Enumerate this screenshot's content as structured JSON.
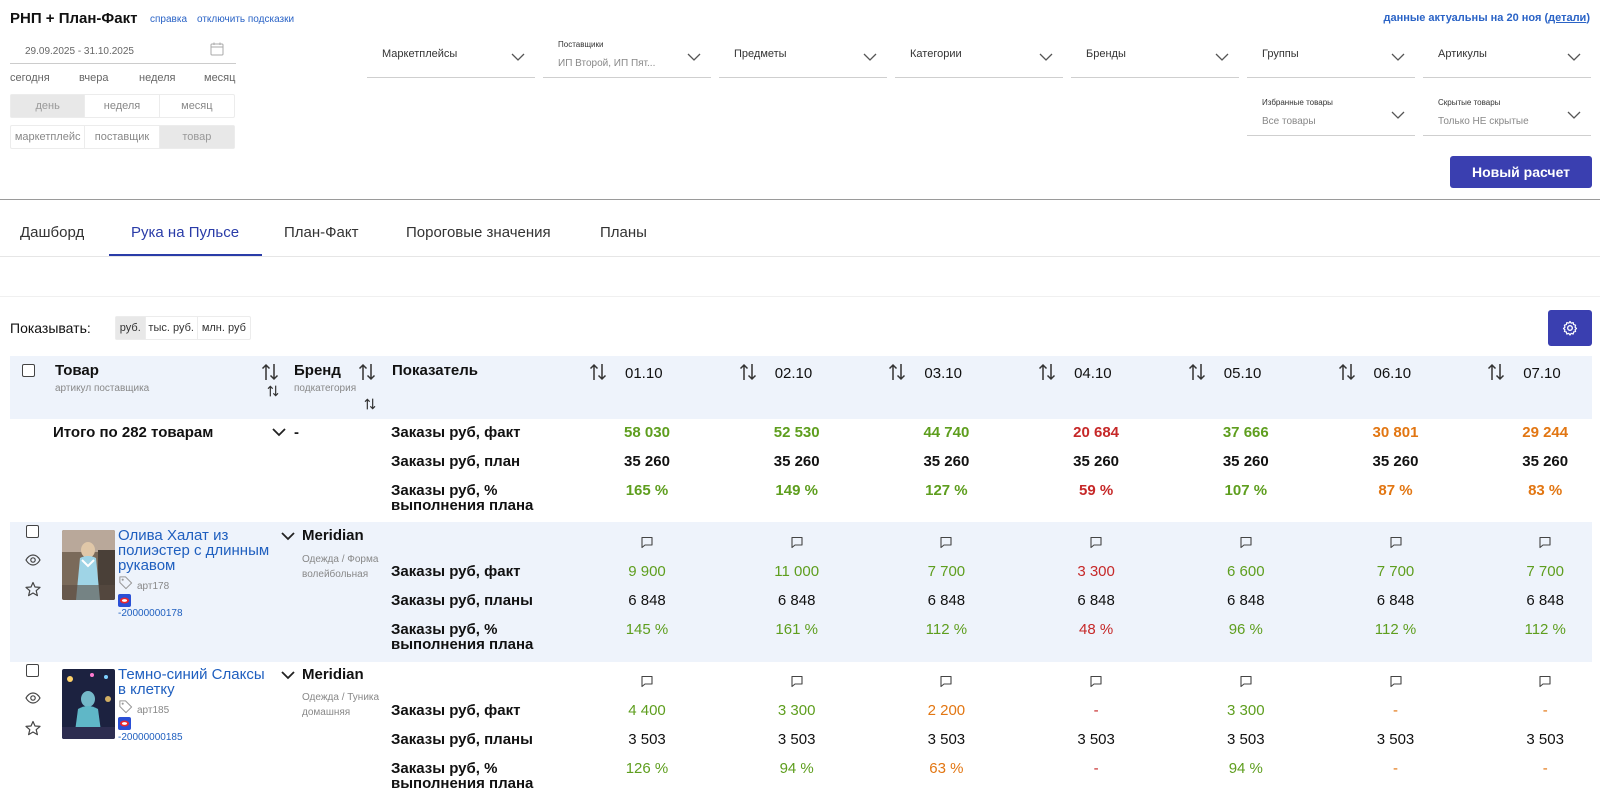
{
  "header": {
    "title": "РНП + План-Факт",
    "help_link": "справка",
    "hints_link": "отключить подсказки",
    "freshness_text": "данные актуальны на 20 ноя (",
    "freshness_link": "детали",
    "freshness_close": ")"
  },
  "period": {
    "date_range": "29.09.2025 - 31.10.2025",
    "quick": [
      "сегодня",
      "вчера",
      "неделя",
      "месяц"
    ],
    "granularity": [
      "день",
      "неделя",
      "месяц"
    ],
    "granularity_selected": "день",
    "level": [
      "маркетплейс",
      "поставщик",
      "товар"
    ],
    "level_selected": "товар"
  },
  "filters": {
    "marketplaces": "Маркетплейсы",
    "suppliers_label": "Поставщики",
    "suppliers_value": "ИП Второй, ИП Пят...",
    "subjects": "Предметы",
    "categories": "Категории",
    "brands": "Бренды",
    "groups": "Группы",
    "articles": "Артикулы",
    "favorites_label": "Избранные товары",
    "favorites_value": "Все товары",
    "hidden_label": "Скрытые товары",
    "hidden_value": "Только НЕ скрытые"
  },
  "new_calc_button": "Новый расчет",
  "tabs": [
    "Дашборд",
    "Рука на Пульсе",
    "План-Факт",
    "Пороговые значения",
    "Планы"
  ],
  "active_tab": "Рука на Пульсе",
  "show": {
    "label": "Показывать:",
    "units": [
      "руб.",
      "тыс. руб.",
      "млн. руб"
    ],
    "selected": "руб."
  },
  "table": {
    "col_product": "Товар",
    "col_product_sub": "артикул поставщика",
    "col_brand": "Бренд",
    "col_brand_sub": "подкатегория",
    "col_metric": "Показатель",
    "dates": [
      "01.10",
      "02.10",
      "03.10",
      "04.10",
      "05.10",
      "06.10",
      "07.10"
    ],
    "total": {
      "label": "Итого по 282 товарам",
      "brand": "-",
      "metrics": [
        "Заказы руб, факт",
        "Заказы руб, план",
        "Заказы руб, %",
        "выполнения плана"
      ],
      "fact": [
        "58 030",
        "52 530",
        "44 740",
        "20 684",
        "37 666",
        "30 801",
        "29 244"
      ],
      "fact_status": [
        "g",
        "g",
        "g",
        "r",
        "g",
        "o",
        "o"
      ],
      "plan": [
        "35 260",
        "35 260",
        "35 260",
        "35 260",
        "35 260",
        "35 260",
        "35 260"
      ],
      "pct": [
        "165 %",
        "149 %",
        "127 %",
        "59 %",
        "107 %",
        "87 %",
        "83 %"
      ],
      "pct_status": [
        "g",
        "g",
        "g",
        "r",
        "g",
        "o",
        "o"
      ]
    },
    "products": [
      {
        "name_lines": [
          "Олива Халат из",
          "полиэстер с длинным",
          "рукавом"
        ],
        "article": "арт178",
        "barcode": "-20000000178",
        "brand": "Meridian",
        "subcat_lines": [
          "Одежда / Форма",
          "волейбольная"
        ],
        "metrics": [
          "Заказы руб, факт",
          "Заказы руб, планы",
          "Заказы руб, %",
          "выполнения плана"
        ],
        "fact": [
          "9 900",
          "11 000",
          "7 700",
          "3 300",
          "6 600",
          "7 700",
          "7 700"
        ],
        "fact_status": [
          "g",
          "g",
          "g",
          "r",
          "g",
          "g",
          "g"
        ],
        "plan": [
          "6 848",
          "6 848",
          "6 848",
          "6 848",
          "6 848",
          "6 848",
          "6 848"
        ],
        "pct": [
          "145 %",
          "161 %",
          "112 %",
          "48 %",
          "96 %",
          "112 %",
          "112 %"
        ],
        "pct_status": [
          "g",
          "g",
          "g",
          "r",
          "g",
          "g",
          "g"
        ]
      },
      {
        "name_lines": [
          "Темно-синий Слаксы",
          "в клетку"
        ],
        "article": "арт185",
        "barcode": "-20000000185",
        "brand": "Meridian",
        "subcat_lines": [
          "Одежда / Туника",
          "домашняя"
        ],
        "metrics": [
          "Заказы руб, факт",
          "Заказы руб, планы",
          "Заказы руб, %",
          "выполнения плана"
        ],
        "fact": [
          "4 400",
          "3 300",
          "2 200",
          "-",
          "3 300",
          "-",
          "-"
        ],
        "fact_status": [
          "g",
          "g",
          "o",
          "r",
          "g",
          "o",
          "o"
        ],
        "plan": [
          "3 503",
          "3 503",
          "3 503",
          "3 503",
          "3 503",
          "3 503",
          "3 503"
        ],
        "pct": [
          "126 %",
          "94 %",
          "63 %",
          "-",
          "94 %",
          "-",
          "-"
        ],
        "pct_status": [
          "g",
          "g",
          "o",
          "r",
          "g",
          "o",
          "o"
        ]
      }
    ]
  },
  "icons": {
    "calendar": "calendar-icon",
    "chevron": "chevron-down-icon",
    "sort": "sort-icon",
    "gear": "gear-icon",
    "eye": "eye-icon",
    "star": "star-icon",
    "tag": "tag-icon",
    "comment": "comment-icon",
    "marketplace": "marketplace-logo-icon"
  }
}
